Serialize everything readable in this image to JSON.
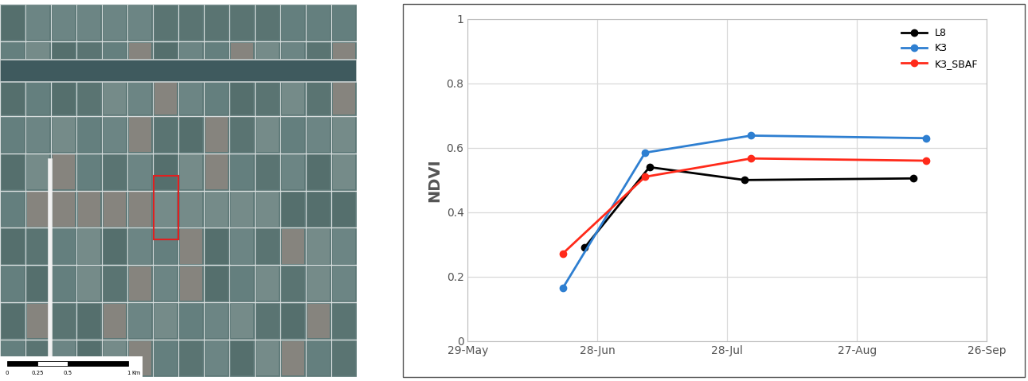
{
  "chart_data": {
    "type": "line",
    "y_label": "NDVI",
    "xlim": [
      149,
      269
    ],
    "xticks": [
      {
        "value": 149,
        "label": "29-May"
      },
      {
        "value": 179,
        "label": "28-Jun"
      },
      {
        "value": 209,
        "label": "28-Jul"
      },
      {
        "value": 239,
        "label": "27-Aug"
      },
      {
        "value": 269,
        "label": "26-Sep"
      }
    ],
    "ylim": [
      0,
      1
    ],
    "yticks": [
      0,
      0.2,
      0.4,
      0.6,
      0.8,
      1
    ],
    "grid": true,
    "legend": "upper right",
    "marker": "circle",
    "series": [
      {
        "name": "L8",
        "color": "#000000",
        "x": [
          176,
          191,
          213,
          252
        ],
        "values": [
          0.29,
          0.54,
          0.5,
          0.505
        ]
      },
      {
        "name": "K3",
        "color": "#2e7fd1",
        "x": [
          171,
          190,
          214.5,
          255
        ],
        "values": [
          0.165,
          0.585,
          0.638,
          0.63
        ]
      },
      {
        "name": "K3_SBAF",
        "color": "#ff2a1a",
        "x": [
          171,
          190,
          214.5,
          255
        ],
        "values": [
          0.272,
          0.51,
          0.567,
          0.56
        ]
      }
    ]
  },
  "map": {
    "scale_bar": {
      "ticks": [
        0,
        0.25,
        0.5,
        1
      ],
      "unit": "Km"
    }
  }
}
